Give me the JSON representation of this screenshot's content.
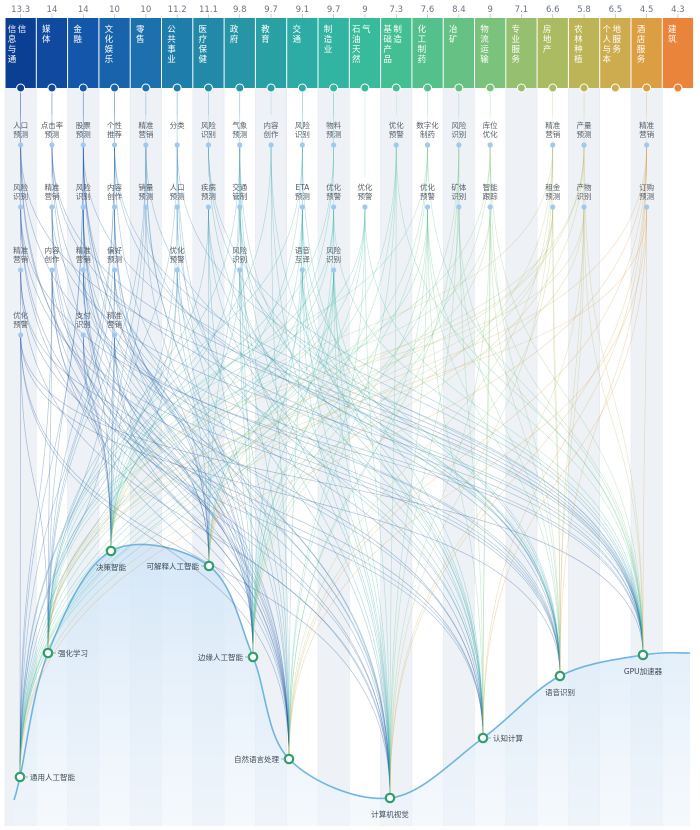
{
  "industries": [
    {
      "id": "ict",
      "label": "信息与通信",
      "score": "13.3",
      "color": "#0b3f93"
    },
    {
      "id": "media",
      "label": "媒体",
      "score": "14",
      "color": "#0f4aa0"
    },
    {
      "id": "finance",
      "label": "金融",
      "score": "14",
      "color": "#1456a9"
    },
    {
      "id": "culture",
      "label": "文化娱乐",
      "score": "10",
      "color": "#1963ad"
    },
    {
      "id": "retail",
      "label": "零售",
      "score": "10",
      "color": "#1c70ad"
    },
    {
      "id": "public",
      "label": "公共事业",
      "score": "11.2",
      "color": "#1f7dab"
    },
    {
      "id": "health",
      "label": "医疗保健",
      "score": "11.1",
      "color": "#228aa8"
    },
    {
      "id": "gov",
      "label": "政府",
      "score": "9.8",
      "color": "#2696a6"
    },
    {
      "id": "edu",
      "label": "教育",
      "score": "9.7",
      "color": "#29a1a4"
    },
    {
      "id": "transport",
      "label": "交通",
      "score": "9.1",
      "color": "#2caca4"
    },
    {
      "id": "manufacturing",
      "label": "制造业",
      "score": "9.7",
      "color": "#31b4a1"
    },
    {
      "id": "oil",
      "label": "石油天然气",
      "score": "9",
      "color": "#38bb9b"
    },
    {
      "id": "basic",
      "label": "基础产品制造",
      "score": "7.3",
      "color": "#44bf94"
    },
    {
      "id": "chemical",
      "label": "化工制药",
      "score": "7.6",
      "color": "#54c18c"
    },
    {
      "id": "mining",
      "label": "冶矿",
      "score": "8.4",
      "color": "#66c284"
    },
    {
      "id": "logistics",
      "label": "物流运输",
      "score": "9",
      "color": "#7bc27c"
    },
    {
      "id": "professional",
      "label": "专业服务",
      "score": "7.1",
      "color": "#96c06f"
    },
    {
      "id": "realestate",
      "label": "房地产",
      "score": "6.6",
      "color": "#aabb62"
    },
    {
      "id": "agri",
      "label": "农林种植",
      "score": "5.8",
      "color": "#bcb457"
    },
    {
      "id": "personal",
      "label": "个人与本地服务",
      "score": "6.5",
      "color": "#cdab4f"
    },
    {
      "id": "hotel",
      "label": "酒店服务",
      "score": "4.5",
      "color": "#dc9e43"
    },
    {
      "id": "construction",
      "label": "建筑",
      "score": "4.3",
      "color": "#e9843a"
    }
  ],
  "use_cases": [
    {
      "col": 0,
      "row": 0,
      "label": "人口预测"
    },
    {
      "col": 0,
      "row": 1,
      "label": "风险识别"
    },
    {
      "col": 0,
      "row": 2,
      "label": "精准营销"
    },
    {
      "col": 0,
      "row": 3,
      "label": "优化预警"
    },
    {
      "col": 1,
      "row": 0,
      "label": "点击率预测"
    },
    {
      "col": 1,
      "row": 1,
      "label": "精准营销"
    },
    {
      "col": 1,
      "row": 2,
      "label": "内容创作"
    },
    {
      "col": 2,
      "row": 0,
      "label": "股票预测"
    },
    {
      "col": 2,
      "row": 1,
      "label": "风险识别"
    },
    {
      "col": 2,
      "row": 2,
      "label": "精准营销"
    },
    {
      "col": 2,
      "row": 3,
      "label": "支付识别"
    },
    {
      "col": 3,
      "row": 0,
      "label": "个性推荐"
    },
    {
      "col": 3,
      "row": 1,
      "label": "内容创作"
    },
    {
      "col": 3,
      "row": 2,
      "label": "偏好预测"
    },
    {
      "col": 3,
      "row": 3,
      "label": "精准营销"
    },
    {
      "col": 4,
      "row": 0,
      "label": "精准营销"
    },
    {
      "col": 4,
      "row": 1,
      "label": "销量预测"
    },
    {
      "col": 5,
      "row": 0,
      "label": "分类"
    },
    {
      "col": 5,
      "row": 1,
      "label": "人口预测"
    },
    {
      "col": 5,
      "row": 2,
      "label": "优化预警"
    },
    {
      "col": 6,
      "row": 0,
      "label": "风险识别"
    },
    {
      "col": 6,
      "row": 1,
      "label": "疾病预测"
    },
    {
      "col": 7,
      "row": 0,
      "label": "气象预测"
    },
    {
      "col": 7,
      "row": 1,
      "label": "交通管制"
    },
    {
      "col": 7,
      "row": 2,
      "label": "风险识别"
    },
    {
      "col": 8,
      "row": 0,
      "label": "内容创作"
    },
    {
      "col": 9,
      "row": 0,
      "label": "风险识别"
    },
    {
      "col": 9,
      "row": 1,
      "label": "ETA预测"
    },
    {
      "col": 9,
      "row": 2,
      "label": "语音互译"
    },
    {
      "col": 10,
      "row": 0,
      "label": "物料预测"
    },
    {
      "col": 10,
      "row": 1,
      "label": "优化预警"
    },
    {
      "col": 10,
      "row": 2,
      "label": "风险识别"
    },
    {
      "col": 11,
      "row": 1,
      "label": "优化预警"
    },
    {
      "col": 12,
      "row": 0,
      "label": "优化预警"
    },
    {
      "col": 13,
      "row": 0,
      "label": "数字化制药"
    },
    {
      "col": 13,
      "row": 1,
      "label": "优化预警"
    },
    {
      "col": 14,
      "row": 0,
      "label": "风险识别"
    },
    {
      "col": 14,
      "row": 1,
      "label": "矿体识别"
    },
    {
      "col": 15,
      "row": 0,
      "label": "库位优化"
    },
    {
      "col": 15,
      "row": 1,
      "label": "智能跟踪"
    },
    {
      "col": 17,
      "row": 0,
      "label": "精准营销"
    },
    {
      "col": 17,
      "row": 1,
      "label": "租金预测"
    },
    {
      "col": 18,
      "row": 0,
      "label": "产量预测"
    },
    {
      "col": 18,
      "row": 1,
      "label": "产物识别"
    },
    {
      "col": 20,
      "row": 0,
      "label": "精准营销"
    },
    {
      "col": 20,
      "row": 1,
      "label": "订购预测"
    }
  ],
  "technologies": [
    {
      "id": "general",
      "label": "通用人工智能"
    },
    {
      "id": "rl",
      "label": "强化学习"
    },
    {
      "id": "decision",
      "label": "决策智能"
    },
    {
      "id": "xai",
      "label": "可解释人工智能"
    },
    {
      "id": "edge",
      "label": "边缘人工智能"
    },
    {
      "id": "nlp",
      "label": "自然语言处理"
    },
    {
      "id": "vision",
      "label": "计算机视觉"
    },
    {
      "id": "cognitive",
      "label": "认知计算"
    },
    {
      "id": "speech",
      "label": "语音识别"
    },
    {
      "id": "gpu",
      "label": "GPU加速器"
    }
  ],
  "colors": {
    "curve": "#6fb4e3",
    "area": "#d7e9f8",
    "node_ring": "#2f9e6a",
    "use_case_dot": "#9fc9ee",
    "column_stripe": "#eef2f7"
  }
}
